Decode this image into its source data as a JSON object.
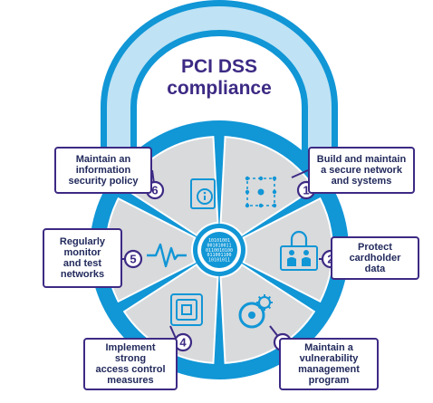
{
  "title": {
    "line1": "PCI DSS",
    "line2": "compliance"
  },
  "center_binary": [
    "10101001",
    "001010011",
    "0110010100",
    "011001100",
    "10101011"
  ],
  "requirements": [
    {
      "number": "1",
      "lines": [
        "Build and maintain",
        "a secure network",
        "and systems"
      ],
      "icon": "network-grid-icon"
    },
    {
      "number": "2",
      "lines": [
        "Protect",
        "cardholder",
        "data"
      ],
      "icon": "people-lock-icon"
    },
    {
      "number": "3",
      "lines": [
        "Maintain a",
        "vulnerability",
        "management",
        "program"
      ],
      "icon": "gear-disc-icon"
    },
    {
      "number": "4",
      "lines": [
        "Implement",
        "strong",
        "access control",
        "measures"
      ],
      "icon": "nested-squares-icon"
    },
    {
      "number": "5",
      "lines": [
        "Regularly",
        "monitor",
        "and test",
        "networks"
      ],
      "icon": "pulse-monitor-icon"
    },
    {
      "number": "6",
      "lines": [
        "Maintain an",
        "information",
        "security policy"
      ],
      "icon": "info-document-icon"
    }
  ],
  "colors": {
    "shackle_light": "#bfe3f5",
    "shackle_dark": "#1196d6",
    "body_blue": "#1196d6",
    "segment_gray": "#d9dadc",
    "callout_border": "#3d2a84",
    "title_color": "#3d2a84",
    "icon_blue": "#1196d6"
  }
}
